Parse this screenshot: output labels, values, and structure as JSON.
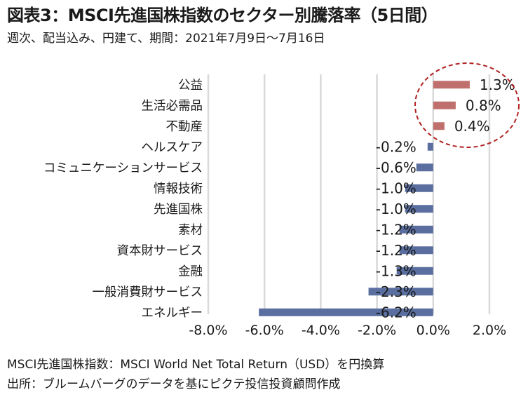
{
  "title": "図表3：MSCI先進国株指数のセクター別騰落率（5日間）",
  "subtitle": "週次、配当込み、円建て、期間：2021年7月9日～7月16日",
  "notes": [
    "MSCI先進国株指数：MSCI World Net Total Return（USD）を円換算",
    "出所：ブルームバーグのデータを基にピクテ投信投資顧問作成"
  ],
  "colors": {
    "positive": "#c0706c",
    "negative": "#5a6fa0",
    "grid": "#d9d9d9",
    "highlight": "#b22222"
  },
  "chart_data": {
    "type": "bar",
    "orientation": "horizontal",
    "categories": [
      "公益",
      "生活必需品",
      "不動産",
      "ヘルスケア",
      "コミュニケーションサービス",
      "情報技術",
      "先進国株",
      "素材",
      "資本財サービス",
      "金融",
      "一般消費財サービス",
      "エネルギー"
    ],
    "values": [
      1.3,
      0.8,
      0.4,
      -0.2,
      -0.6,
      -1.0,
      -1.0,
      -1.2,
      -1.2,
      -1.3,
      -2.3,
      -6.2
    ],
    "data_labels": [
      "1.3%",
      "0.8%",
      "0.4%",
      "-0.2%",
      "-0.6%",
      "-1.0%",
      "-1.0%",
      "-1.2%",
      "-1.2%",
      "-1.3%",
      "-2.3%",
      "-6.2%"
    ],
    "xticks": [
      -8.0,
      -6.0,
      -4.0,
      -2.0,
      0.0,
      2.0
    ],
    "xtick_labels": [
      "-8.0%",
      "-6.0%",
      "-4.0%",
      "-2.0%",
      "0.0%",
      "2.0%"
    ],
    "xlim": [
      -8.0,
      2.0
    ],
    "grid": true,
    "highlight": "dashed circle around top three positive sectors"
  }
}
